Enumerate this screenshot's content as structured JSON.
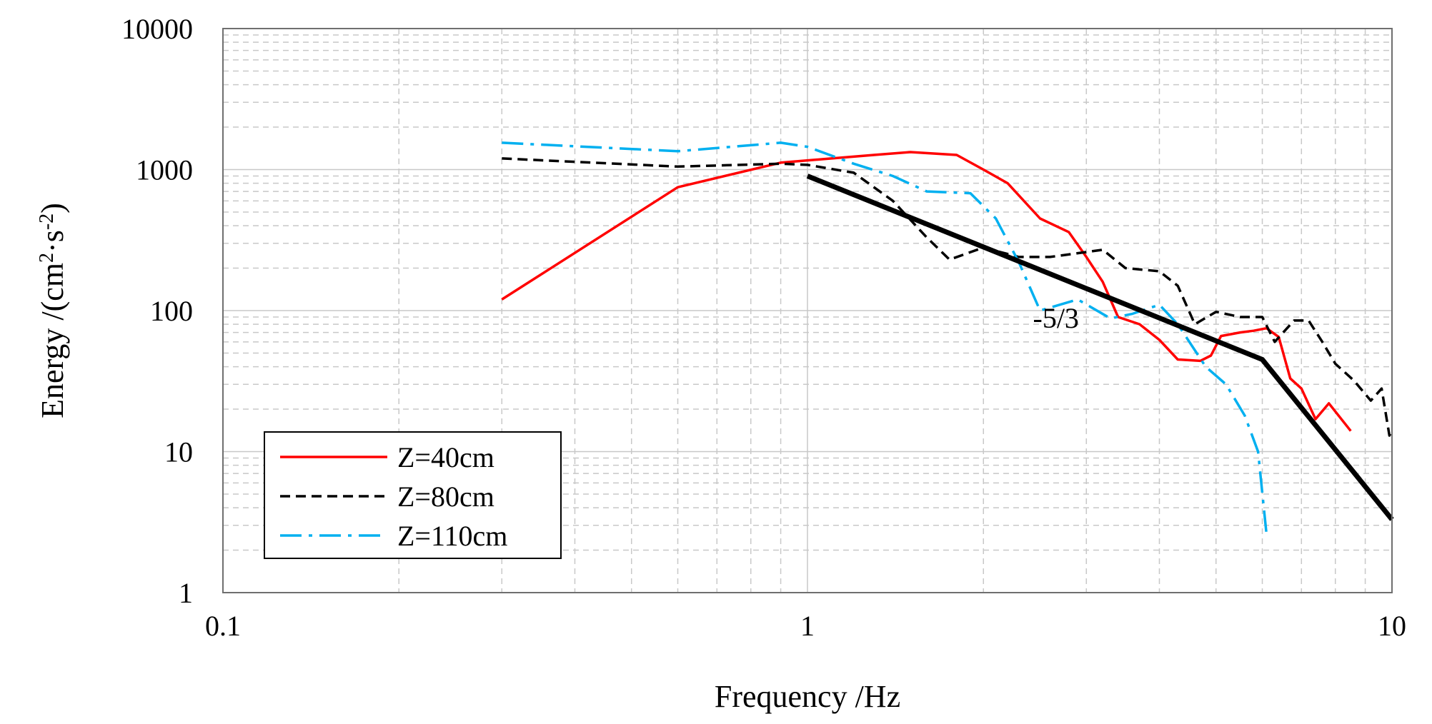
{
  "chart_data": {
    "type": "line",
    "title": "",
    "xlabel": "Frequency /Hz",
    "ylabel": "Energy /(cm²·s⁻²)",
    "ylabel_parts": {
      "main": "Energy /(cm",
      "sup1": "2",
      "mid": "·s",
      "sup2": "-2",
      "end": ")"
    },
    "x_scale": "log",
    "y_scale": "log",
    "xlim": [
      0.1,
      10
    ],
    "ylim": [
      1,
      10000
    ],
    "x_ticks": [
      {
        "value": 0.1,
        "label": "0.1"
      },
      {
        "value": 1,
        "label": "1"
      },
      {
        "value": 10,
        "label": "10"
      }
    ],
    "y_ticks": [
      {
        "value": 1,
        "label": "1"
      },
      {
        "value": 10,
        "label": "10"
      },
      {
        "value": 100,
        "label": "100"
      },
      {
        "value": 1000,
        "label": "1000"
      },
      {
        "value": 10000,
        "label": "10000"
      }
    ],
    "grid": true,
    "legend_position": "bottom-left",
    "series": [
      {
        "name": "Z=40cm",
        "color": "#ff0000",
        "dash": "solid",
        "points": [
          [
            0.3,
            120
          ],
          [
            0.6,
            750
          ],
          [
            0.9,
            1120
          ],
          [
            1.1,
            1200
          ],
          [
            1.3,
            1270
          ],
          [
            1.5,
            1330
          ],
          [
            1.8,
            1270
          ],
          [
            2.0,
            1000
          ],
          [
            2.2,
            800
          ],
          [
            2.5,
            450
          ],
          [
            2.8,
            360
          ],
          [
            3.0,
            240
          ],
          [
            3.2,
            160
          ],
          [
            3.4,
            90
          ],
          [
            3.7,
            80
          ],
          [
            4.0,
            62
          ],
          [
            4.3,
            45
          ],
          [
            4.7,
            44
          ],
          [
            4.9,
            48
          ],
          [
            5.1,
            66
          ],
          [
            5.5,
            70
          ],
          [
            5.8,
            72
          ],
          [
            6.1,
            75
          ],
          [
            6.4,
            65
          ],
          [
            6.7,
            33
          ],
          [
            7.0,
            28
          ],
          [
            7.4,
            17
          ],
          [
            7.8,
            22
          ],
          [
            8.5,
            14
          ]
        ]
      },
      {
        "name": "Z=80cm",
        "color": "#000000",
        "dash": "dash",
        "points": [
          [
            0.3,
            1200
          ],
          [
            0.6,
            1050
          ],
          [
            0.9,
            1100
          ],
          [
            1.0,
            1080
          ],
          [
            1.2,
            950
          ],
          [
            1.4,
            600
          ],
          [
            1.6,
            330
          ],
          [
            1.75,
            230
          ],
          [
            2.0,
            280
          ],
          [
            2.3,
            240
          ],
          [
            2.6,
            240
          ],
          [
            3.0,
            260
          ],
          [
            3.2,
            270
          ],
          [
            3.5,
            200
          ],
          [
            4.0,
            190
          ],
          [
            4.3,
            150
          ],
          [
            4.6,
            80
          ],
          [
            5.0,
            98
          ],
          [
            5.5,
            90
          ],
          [
            6.0,
            90
          ],
          [
            6.3,
            60
          ],
          [
            6.8,
            85
          ],
          [
            7.2,
            85
          ],
          [
            7.6,
            60
          ],
          [
            8.0,
            42
          ],
          [
            8.6,
            32
          ],
          [
            9.2,
            23
          ],
          [
            9.6,
            28
          ],
          [
            9.9,
            13
          ],
          [
            10,
            14
          ]
        ]
      },
      {
        "name": "Z=110cm",
        "color": "#00b0f0",
        "dash": "dashdot",
        "points": [
          [
            0.3,
            1550
          ],
          [
            0.6,
            1350
          ],
          [
            0.9,
            1550
          ],
          [
            1.0,
            1450
          ],
          [
            1.2,
            1100
          ],
          [
            1.4,
            900
          ],
          [
            1.6,
            700
          ],
          [
            1.9,
            680
          ],
          [
            2.1,
            450
          ],
          [
            2.3,
            220
          ],
          [
            2.5,
            100
          ],
          [
            2.9,
            120
          ],
          [
            3.3,
            88
          ],
          [
            3.6,
            95
          ],
          [
            4.0,
            110
          ],
          [
            4.3,
            80
          ],
          [
            4.8,
            40
          ],
          [
            5.2,
            30
          ],
          [
            5.6,
            18
          ],
          [
            5.9,
            10
          ],
          [
            6.1,
            2.6
          ]
        ]
      },
      {
        "name": "-5/3",
        "color": "#000000",
        "dash": "solid",
        "width": "thick",
        "show_in_legend": false,
        "points": [
          [
            1.0,
            900
          ],
          [
            6.0,
            45
          ],
          [
            10,
            3.3
          ]
        ]
      }
    ],
    "annotations": [
      {
        "text": "-5/3",
        "x": 2.5,
        "y": 100
      }
    ]
  }
}
